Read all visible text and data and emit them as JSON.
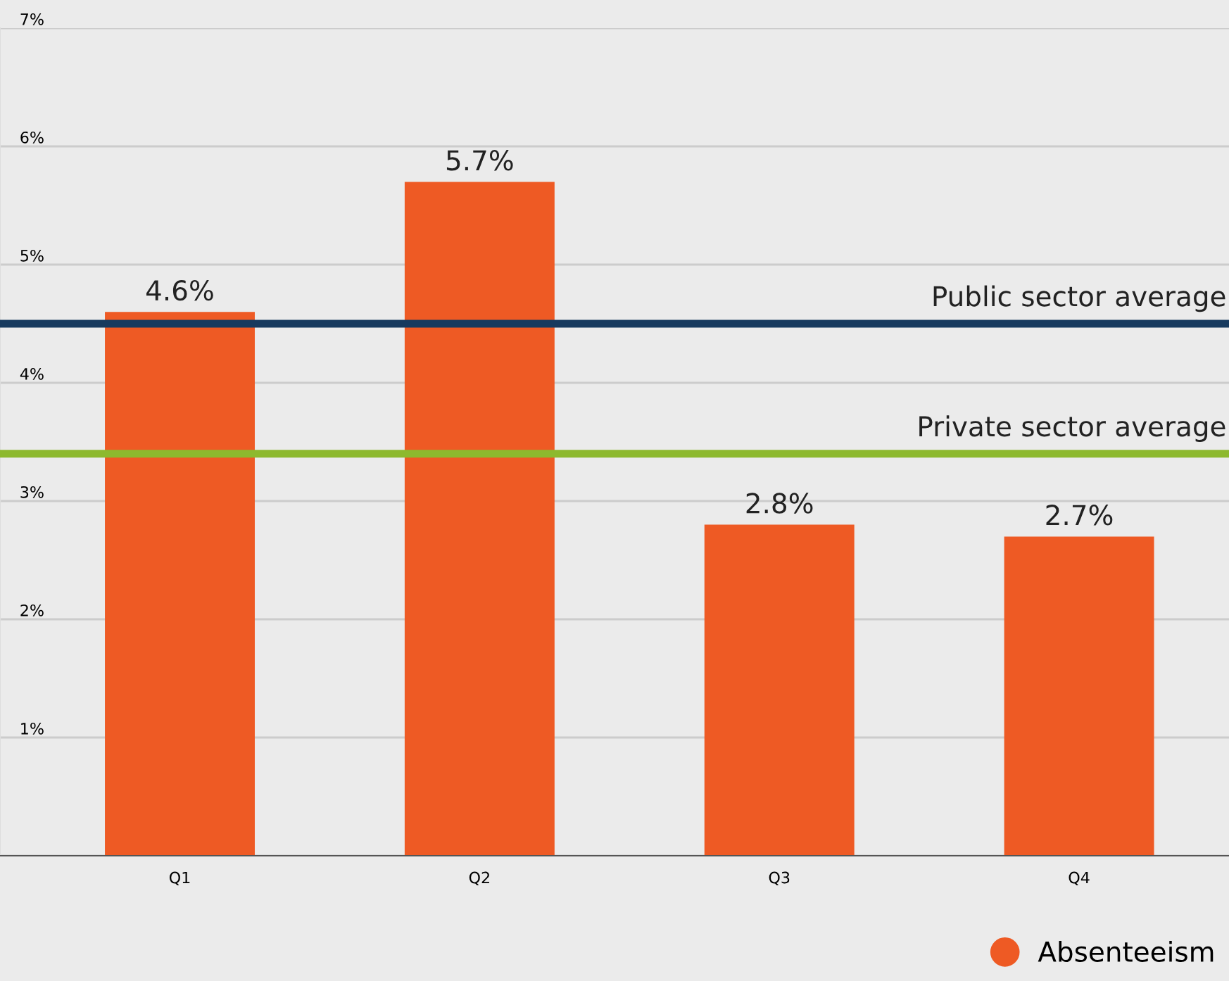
{
  "chart_data": {
    "type": "bar",
    "categories": [
      "Q1",
      "Q2",
      "Q3",
      "Q4"
    ],
    "series": [
      {
        "name": "Absenteeism",
        "color": "#ee5a24",
        "values": [
          4.6,
          5.7,
          2.8,
          2.7
        ],
        "value_labels": [
          "4.6%",
          "5.7%",
          "2.8%",
          "2.7%"
        ]
      }
    ],
    "ylim": [
      0,
      7
    ],
    "yticks": [
      {
        "value": 0,
        "label": null
      },
      {
        "value": 1,
        "label": "1%"
      },
      {
        "value": 2,
        "label": "2%"
      },
      {
        "value": 3,
        "label": "3%"
      },
      {
        "value": 4,
        "label": "4%"
      },
      {
        "value": 5,
        "label": "5%"
      },
      {
        "value": 6,
        "label": "6%"
      },
      {
        "value": 7,
        "label": "7%"
      }
    ],
    "ref_lines": [
      {
        "axis": "y",
        "value": 4.5,
        "label": "Public sector average",
        "color": "#173a5e"
      },
      {
        "axis": "y",
        "value": 3.4,
        "label": "Private sector average",
        "color": "#8db92e"
      }
    ],
    "grid": "y",
    "legend": "bottom right",
    "marker": "circle"
  }
}
